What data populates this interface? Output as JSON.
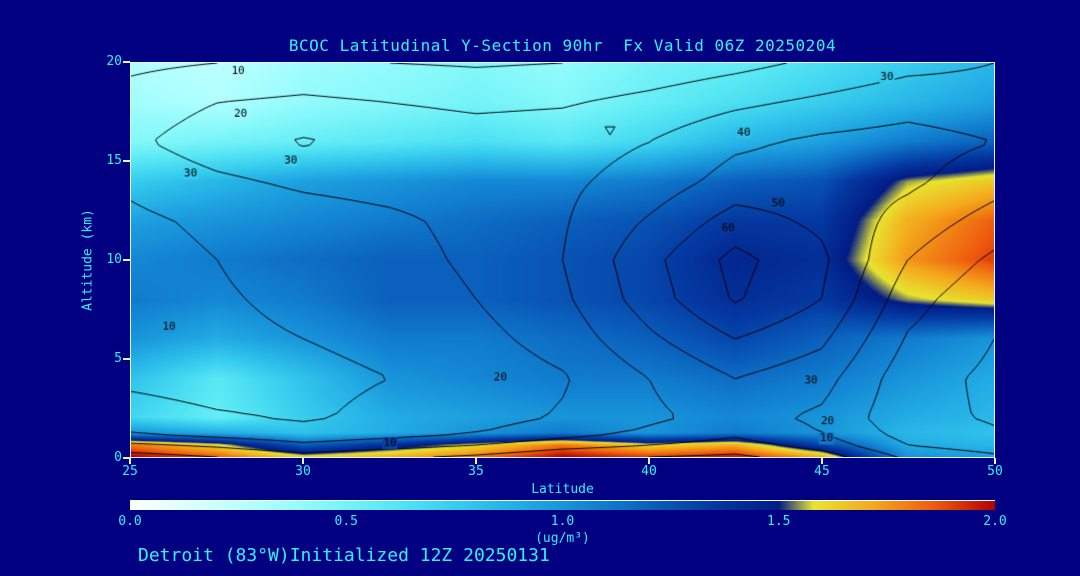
{
  "chart_data": {
    "type": "heatmap",
    "title": "BCOC Latitudinal Y-Section 90hr  Fx Valid 06Z 20250204",
    "footer": "Detroit (83°W)Initialized 12Z 20250131",
    "xlabel": "Latitude",
    "ylabel": "Altitude (km)",
    "x_axis": {
      "min": 25,
      "max": 50,
      "ticks": [
        25,
        30,
        35,
        40,
        45,
        50
      ]
    },
    "y_axis": {
      "min": 0,
      "max": 20,
      "ticks": [
        0,
        5,
        10,
        15,
        20
      ]
    },
    "lats": [
      25,
      27.5,
      30,
      32.5,
      35,
      37.5,
      40,
      42.5,
      45,
      47.5,
      50
    ],
    "alts_km": [
      0,
      0.6,
      1.2,
      2,
      4,
      6,
      8,
      10,
      12,
      14,
      16,
      18,
      20
    ],
    "fill_values_ugm3": [
      [
        2.0,
        1.85,
        1.6,
        1.7,
        1.8,
        2.0,
        1.9,
        1.95,
        1.7,
        1.0,
        0.95
      ],
      [
        1.8,
        1.6,
        1.2,
        1.4,
        1.6,
        1.8,
        1.6,
        1.7,
        1.3,
        0.9,
        0.85
      ],
      [
        1.0,
        0.9,
        0.8,
        0.9,
        1.0,
        1.1,
        1.0,
        1.1,
        1.0,
        0.85,
        0.8
      ],
      [
        0.7,
        0.55,
        0.75,
        0.9,
        0.95,
        1.0,
        1.0,
        1.05,
        1.0,
        0.9,
        0.85
      ],
      [
        0.8,
        0.6,
        0.8,
        1.0,
        1.05,
        1.1,
        1.1,
        1.15,
        1.1,
        1.0,
        0.9
      ],
      [
        1.0,
        0.9,
        1.0,
        1.1,
        1.1,
        1.15,
        1.2,
        1.3,
        1.2,
        1.1,
        1.0
      ],
      [
        1.1,
        1.05,
        1.1,
        1.2,
        1.2,
        1.25,
        1.3,
        1.4,
        1.35,
        1.55,
        1.65
      ],
      [
        1.05,
        1.1,
        1.15,
        1.2,
        1.2,
        1.25,
        1.3,
        1.45,
        1.4,
        1.75,
        1.9
      ],
      [
        0.95,
        1.0,
        1.05,
        1.1,
        1.15,
        1.2,
        1.25,
        1.35,
        1.35,
        1.7,
        1.85
      ],
      [
        0.75,
        0.85,
        0.95,
        1.0,
        1.05,
        1.05,
        1.1,
        1.2,
        1.25,
        1.55,
        1.65
      ],
      [
        0.45,
        0.5,
        0.55,
        0.6,
        0.65,
        0.6,
        0.7,
        0.85,
        0.95,
        1.1,
        1.2
      ],
      [
        0.35,
        0.3,
        0.4,
        0.45,
        0.5,
        0.45,
        0.55,
        0.65,
        0.75,
        0.85,
        0.95
      ],
      [
        0.3,
        0.25,
        0.35,
        0.4,
        0.45,
        0.4,
        0.5,
        0.55,
        0.65,
        0.75,
        0.85
      ]
    ],
    "contour_values": [
      [
        45,
        40,
        34,
        38,
        42,
        48,
        50,
        52,
        45,
        28,
        22
      ],
      [
        32,
        28,
        22,
        26,
        30,
        36,
        40,
        44,
        36,
        20,
        15
      ],
      [
        20,
        16,
        13,
        16,
        20,
        26,
        32,
        38,
        30,
        16,
        11
      ],
      [
        14,
        11,
        9,
        12,
        16,
        21,
        28,
        34,
        28,
        13,
        9
      ],
      [
        8,
        6,
        8,
        10,
        14,
        19,
        30,
        40,
        34,
        14,
        8
      ],
      [
        5,
        8,
        10,
        12,
        17,
        24,
        38,
        50,
        42,
        19,
        10
      ],
      [
        5,
        9,
        12,
        14,
        20,
        28,
        45,
        61,
        50,
        24,
        12
      ],
      [
        6,
        10,
        14,
        16,
        22,
        30,
        47,
        63,
        52,
        30,
        18
      ],
      [
        8,
        12,
        15,
        18,
        23,
        29,
        41,
        54,
        48,
        36,
        26
      ],
      [
        12,
        18,
        22,
        24,
        26,
        28,
        34,
        44,
        45,
        42,
        34
      ],
      [
        18,
        26,
        31,
        27,
        25,
        26,
        30,
        38,
        42,
        44,
        40
      ],
      [
        14,
        20,
        22,
        20,
        18,
        19,
        23,
        28,
        32,
        36,
        34
      ],
      [
        8,
        10,
        12,
        10,
        9,
        10,
        13,
        17,
        22,
        27,
        30
      ]
    ],
    "contour_levels": [
      10,
      20,
      30,
      40,
      50,
      60
    ],
    "contour_labels": [
      {
        "text": "10",
        "x": 12.4,
        "y": 2.0
      },
      {
        "text": "20",
        "x": 12.7,
        "y": 12.9
      },
      {
        "text": "30",
        "x": 6.9,
        "y": 28.0
      },
      {
        "text": "30",
        "x": 18.5,
        "y": 24.7
      },
      {
        "text": "30",
        "x": 87.6,
        "y": 3.5
      },
      {
        "text": "40",
        "x": 71.0,
        "y": 17.7
      },
      {
        "text": "50",
        "x": 75.0,
        "y": 35.6
      },
      {
        "text": "60",
        "x": 69.2,
        "y": 41.9
      },
      {
        "text": "10",
        "x": 4.4,
        "y": 66.9
      },
      {
        "text": "20",
        "x": 42.8,
        "y": 79.8
      },
      {
        "text": "30",
        "x": 78.8,
        "y": 80.6
      },
      {
        "text": "10",
        "x": 30.0,
        "y": 96.5
      },
      {
        "text": "20",
        "x": 80.7,
        "y": 90.9
      },
      {
        "text": "10",
        "x": 80.6,
        "y": 95.3
      }
    ],
    "annotations": [
      {
        "type": "triangle-down",
        "x": 55.5,
        "y": 17.2
      }
    ],
    "colorbar": {
      "min": 0,
      "max": 2,
      "tick_values": [
        0,
        0.5,
        1,
        1.5,
        2
      ],
      "tick_labels": [
        "0.0",
        "0.5",
        "1.0",
        "1.5",
        "2.0"
      ],
      "units": "(ug/m³)",
      "stops": [
        [
          0.0,
          "#ffffff"
        ],
        [
          0.15,
          "#d8ffff"
        ],
        [
          0.3,
          "#b0ffff"
        ],
        [
          0.45,
          "#84f8fa"
        ],
        [
          0.6,
          "#58e8f4"
        ],
        [
          0.75,
          "#38cdee"
        ],
        [
          0.9,
          "#22ace4"
        ],
        [
          1.05,
          "#1488d4"
        ],
        [
          1.2,
          "#0a60bc"
        ],
        [
          1.35,
          "#0438a0"
        ],
        [
          1.5,
          "#021c86"
        ],
        [
          1.58,
          "#e8e430"
        ],
        [
          1.72,
          "#f4a81c"
        ],
        [
          1.86,
          "#ee5a0e"
        ],
        [
          2.0,
          "#b40000"
        ]
      ]
    },
    "colors": {
      "background": "#000080",
      "text": "#2ef2ff",
      "contour_line": "#000000",
      "frame": "#dff6ff"
    }
  }
}
